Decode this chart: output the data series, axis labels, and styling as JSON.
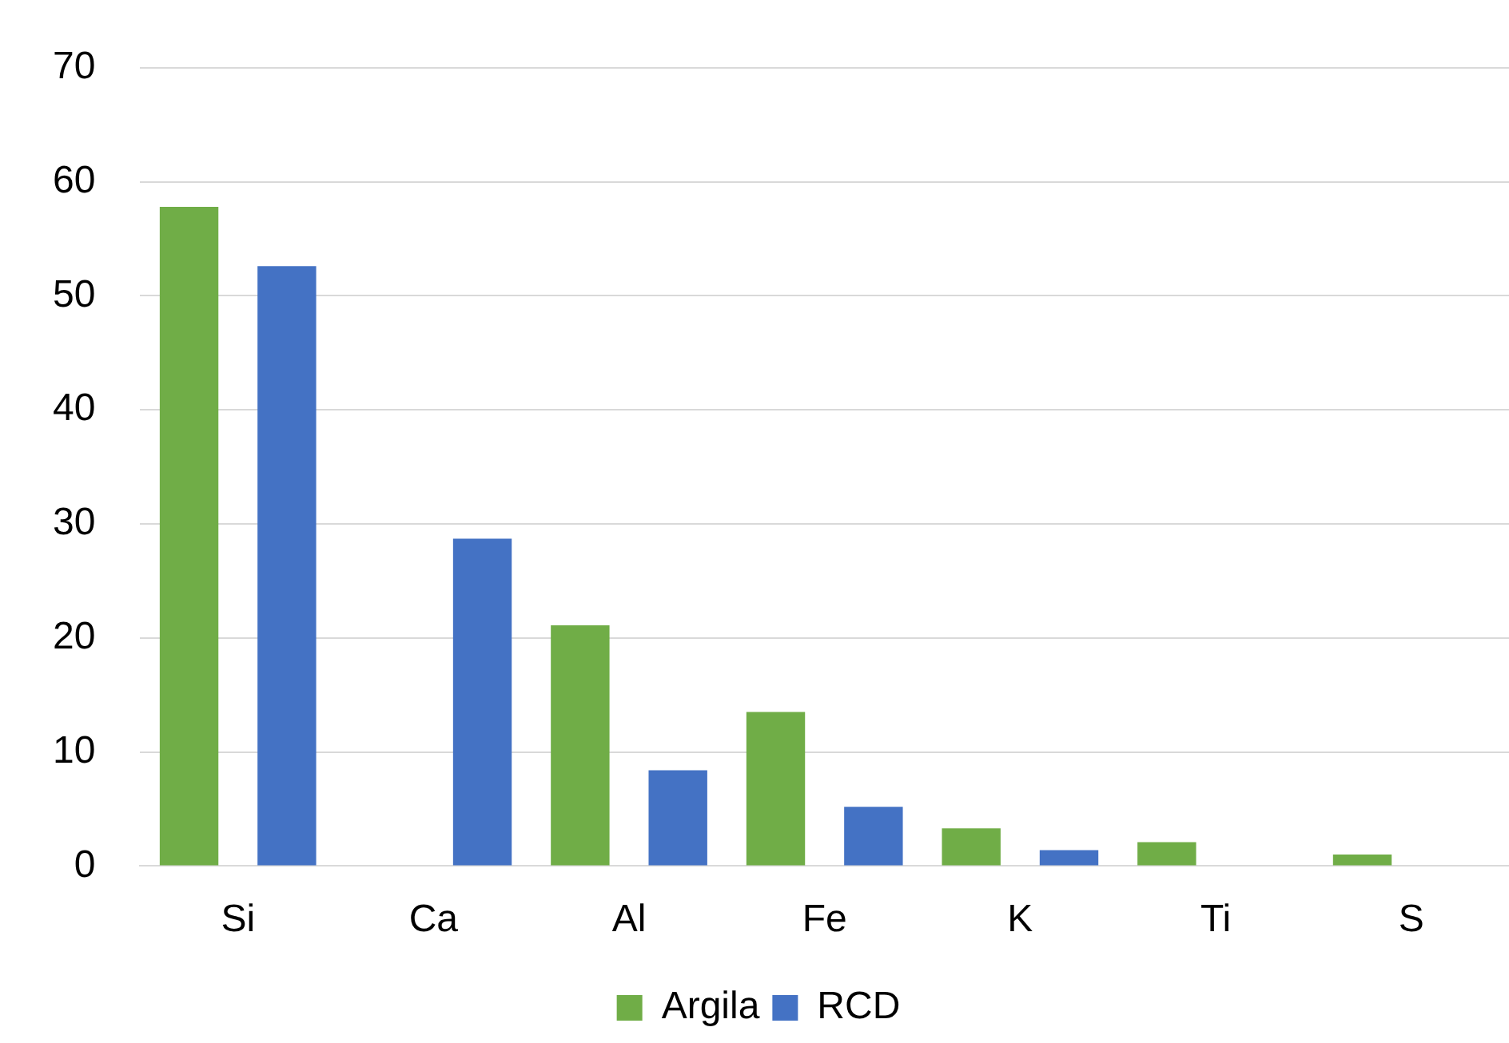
{
  "chart_data": {
    "type": "bar",
    "categories": [
      "Si",
      "Ca",
      "Al",
      "Fe",
      "K",
      "Ti",
      "S"
    ],
    "series": [
      {
        "name": "Argila",
        "color": "#70ad47",
        "values": [
          57.8,
          null,
          21.1,
          13.5,
          3.3,
          2.1,
          1.0
        ]
      },
      {
        "name": "RCD",
        "color": "#4472c4",
        "values": [
          52.6,
          28.7,
          8.4,
          5.2,
          1.4,
          null,
          null
        ]
      }
    ],
    "ylim": [
      0,
      70
    ],
    "yticks": [
      0,
      10,
      20,
      30,
      40,
      50,
      60,
      70
    ],
    "grid": "y",
    "legend": "bottom"
  }
}
